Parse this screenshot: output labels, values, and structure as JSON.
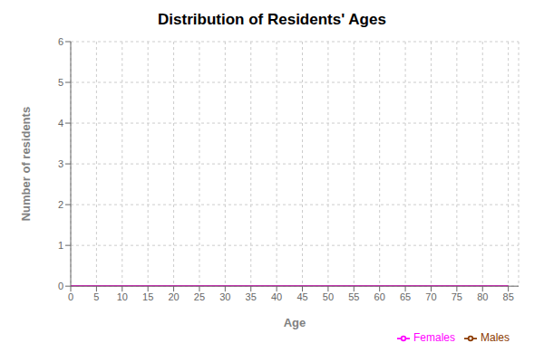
{
  "chart_data": {
    "type": "line",
    "title": "Distribution of Residents' Ages",
    "xlabel": "Age",
    "ylabel": "Number of residents",
    "x": [
      0,
      85
    ],
    "series": [
      {
        "name": "Males",
        "color": "#8B3A00",
        "values": [
          0,
          0
        ]
      },
      {
        "name": "Females",
        "color": "#FF00FF",
        "values": [
          0,
          0
        ]
      }
    ],
    "xlim": [
      0,
      87
    ],
    "xticks": [
      0,
      5,
      10,
      15,
      20,
      25,
      30,
      35,
      40,
      45,
      50,
      55,
      60,
      65,
      70,
      75,
      80,
      85
    ],
    "ylim": [
      0,
      6
    ],
    "yticks": [
      0,
      1,
      2,
      3,
      4,
      5,
      6
    ],
    "grid": true,
    "legend": "lower right"
  }
}
